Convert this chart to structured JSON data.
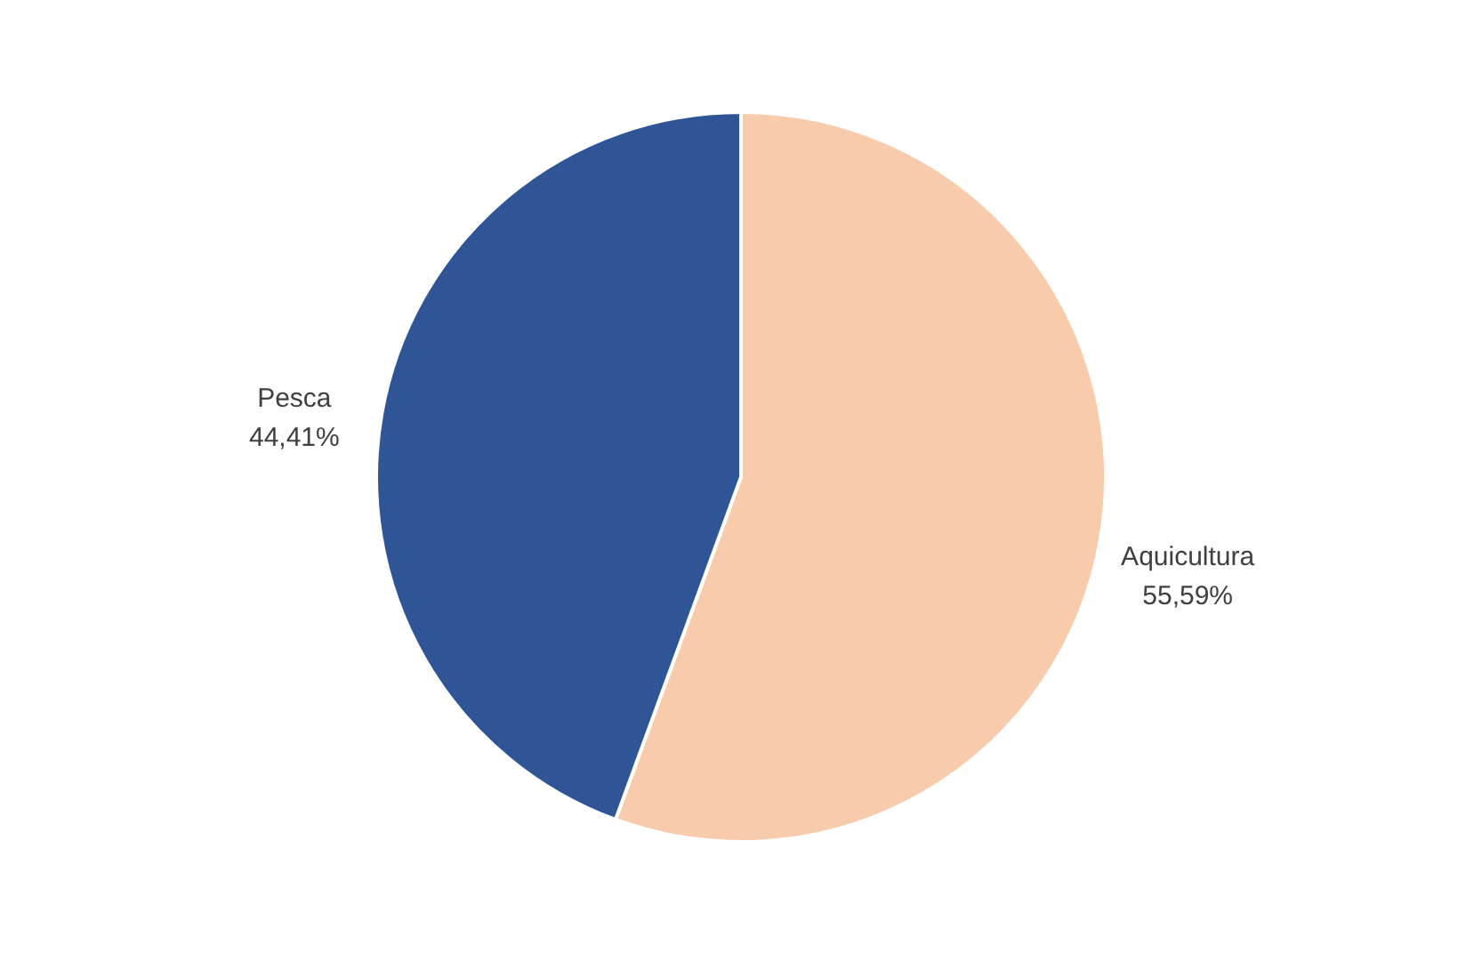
{
  "chart_data": {
    "type": "pie",
    "categories": [
      "Aquicultura",
      "Pesca"
    ],
    "values": [
      55.59,
      44.41
    ],
    "colors": [
      "#f8cbad",
      "#2f5597"
    ],
    "value_labels": [
      "55,59%",
      "44,41%"
    ],
    "legend": false
  }
}
